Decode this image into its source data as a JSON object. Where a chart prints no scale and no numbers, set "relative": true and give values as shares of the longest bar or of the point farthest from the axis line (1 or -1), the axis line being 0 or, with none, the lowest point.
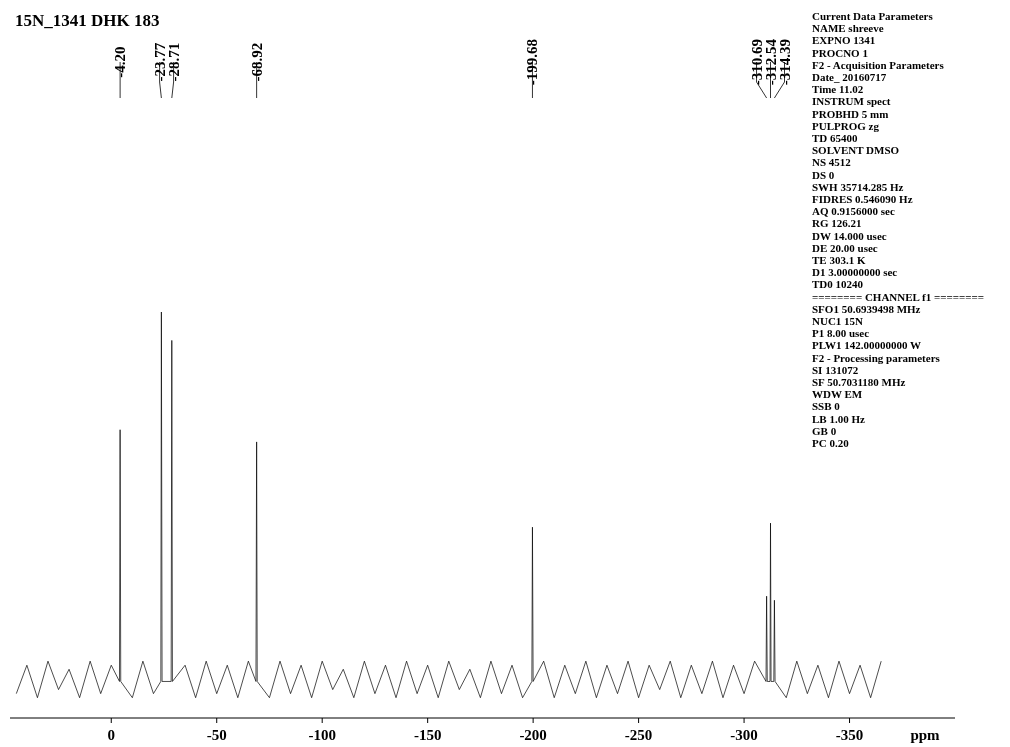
{
  "chart_data": {
    "type": "line",
    "title": "15N_1341   DHK 183",
    "xlabel": "ppm",
    "relative": true,
    "xlim": [
      48,
      -400
    ],
    "xticks": [
      0,
      -50,
      -100,
      -150,
      -200,
      -250,
      -300,
      -350
    ],
    "series": [
      {
        "color": "#000000",
        "x": [
          45,
          40,
          35,
          30,
          25,
          20,
          15,
          10,
          5,
          0,
          -3.9,
          -4.2,
          -4.5,
          -10,
          -15,
          -20,
          -23.5,
          -23.77,
          -24.1,
          -28.4,
          -28.71,
          -29,
          -35,
          -40,
          -45,
          -50,
          -55,
          -60,
          -65,
          -68.6,
          -68.92,
          -69.2,
          -75,
          -80,
          -85,
          -90,
          -95,
          -100,
          -105,
          -110,
          -115,
          -120,
          -125,
          -130,
          -135,
          -140,
          -145,
          -150,
          -155,
          -160,
          -165,
          -170,
          -175,
          -180,
          -185,
          -190,
          -195,
          -199.4,
          -199.68,
          -200,
          -205,
          -210,
          -215,
          -220,
          -225,
          -230,
          -235,
          -240,
          -245,
          -250,
          -255,
          -260,
          -265,
          -270,
          -275,
          -280,
          -285,
          -290,
          -295,
          -300,
          -305,
          -310.4,
          -310.69,
          -311,
          -312.3,
          -312.54,
          -312.8,
          -314.1,
          -314.39,
          -314.7,
          -320,
          -325,
          -330,
          -335,
          -340,
          -345,
          -350,
          -355,
          -360,
          -365
        ],
        "values": [
          0.06,
          0.13,
          0.05,
          0.14,
          0.07,
          0.12,
          0.05,
          0.14,
          0.06,
          0.13,
          0.09,
          0.71,
          0.09,
          0.05,
          0.14,
          0.06,
          0.09,
          1,
          0.09,
          0.09,
          0.93,
          0.09,
          0.13,
          0.05,
          0.14,
          0.06,
          0.13,
          0.05,
          0.14,
          0.09,
          0.68,
          0.09,
          0.05,
          0.14,
          0.06,
          0.13,
          0.05,
          0.14,
          0.07,
          0.12,
          0.05,
          0.14,
          0.06,
          0.13,
          0.05,
          0.14,
          0.06,
          0.13,
          0.05,
          0.14,
          0.07,
          0.12,
          0.05,
          0.14,
          0.06,
          0.13,
          0.05,
          0.09,
          0.47,
          0.09,
          0.14,
          0.05,
          0.13,
          0.06,
          0.14,
          0.05,
          0.13,
          0.06,
          0.14,
          0.05,
          0.13,
          0.07,
          0.14,
          0.05,
          0.13,
          0.06,
          0.14,
          0.05,
          0.13,
          0.06,
          0.14,
          0.09,
          0.3,
          0.09,
          0.09,
          0.48,
          0.09,
          0.09,
          0.29,
          0.09,
          0.05,
          0.14,
          0.06,
          0.13,
          0.05,
          0.14,
          0.06,
          0.13,
          0.05,
          0.14
        ]
      }
    ],
    "annotations": [
      "-4.20",
      "-23.77",
      "-28.71",
      "-68.92",
      "-199.68",
      "-310.69",
      "-312.54",
      "-314.39",
      "Current Data Parameters",
      "NAME shreeve",
      "EXPNO 1341",
      "PROCNO 1",
      "F2 - Acquisition Parameters",
      "Date_ 20160717",
      "Time 11.02",
      "INSTRUM spect",
      "PROBHD 5 mm",
      "PULPROG zg",
      "TD 65400",
      "SOLVENT DMSO",
      "NS 4512",
      "DS 0",
      "SWH 35714.285 Hz",
      "FIDRES 0.546090 Hz",
      "AQ 0.9156000 sec",
      "RG 126.21",
      "DW 14.000 usec",
      "DE 20.00 usec",
      "TE 303.1 K",
      "D1 3.00000000 sec",
      "TD0 10240",
      "======== CHANNEL f1 ========",
      "SFO1 50.6939498 MHz",
      "NUC1 15N",
      "P1 8.00 usec",
      "PLW1 142.00000000 W",
      "F2 - Processing parameters",
      "SI 131072",
      "SF 50.7031180 MHz",
      "WDW EM",
      "SSB 0",
      "LB 1.00 Hz",
      "GB 0",
      "PC 0.20"
    ]
  }
}
